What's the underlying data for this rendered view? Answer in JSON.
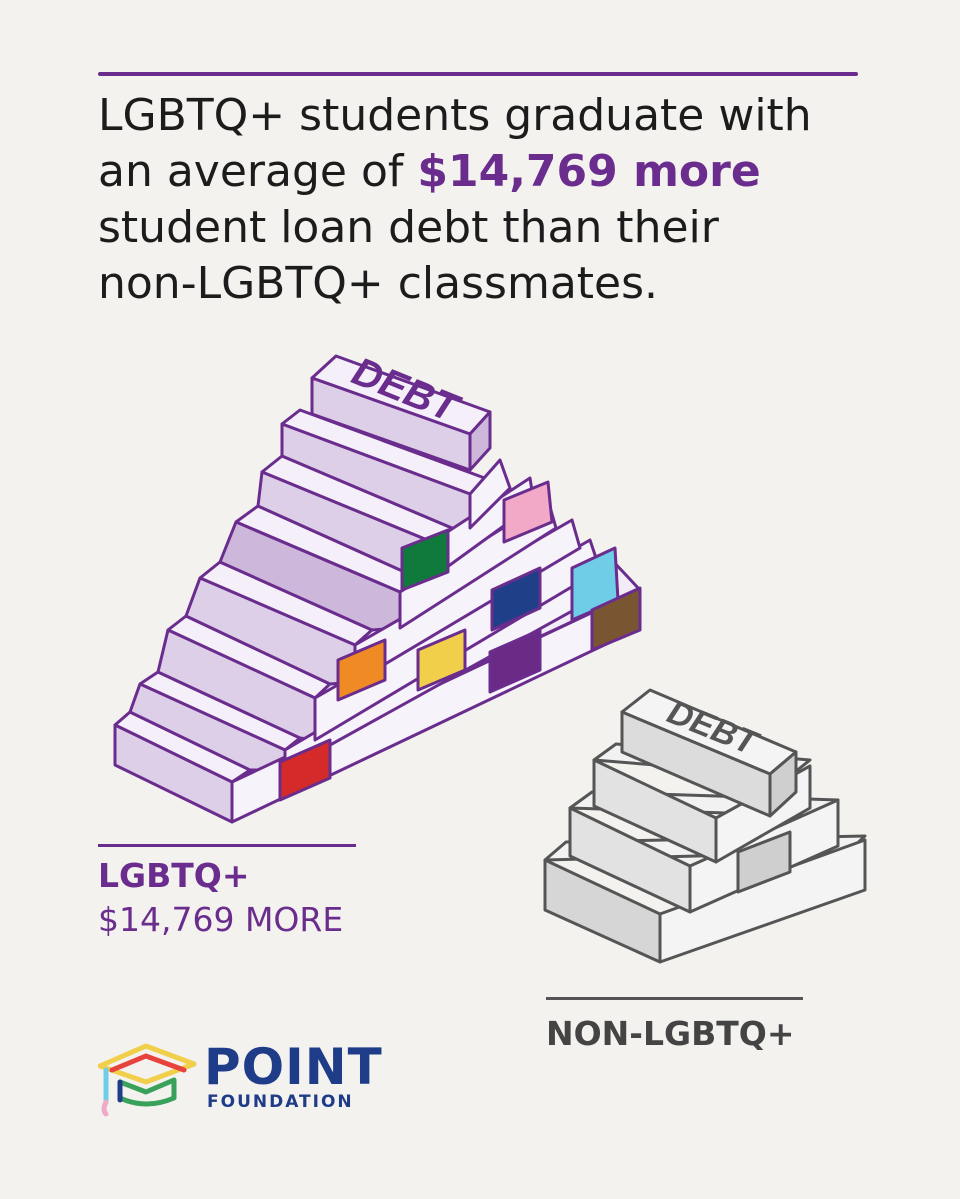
{
  "headline": {
    "line1": "LGBTQ+ students graduate with",
    "line2_prefix": "an average of ",
    "line2_highlight": "$14,769 more",
    "line3": "student loan debt than their",
    "line4": "non-LGBTQ+ classmates."
  },
  "big_pyramid": {
    "top_block_text": "DEBT"
  },
  "small_pyramid": {
    "top_block_text": "DEBT"
  },
  "labels": {
    "lgbtq_title": "LGBTQ+",
    "lgbtq_amount": "$14,769 MORE",
    "non_lgbtq_title": "NON-LGBTQ+"
  },
  "logo": {
    "name": "POINT",
    "subname": "FOUNDATION"
  },
  "colors": {
    "accent": "#6a2d8e",
    "brand_blue": "#1f3c88",
    "background": "#f3f2ef",
    "pride_red": "#d42a2a",
    "pride_orange": "#f08a24",
    "pride_yellow": "#f2cf4a",
    "pride_green": "#0f7a3c",
    "pride_blue": "#1f3f88",
    "pride_purple": "#6a2a86",
    "trans_pink": "#f2a9c8",
    "trans_blue": "#6fcde8",
    "brown": "#7a5532"
  }
}
